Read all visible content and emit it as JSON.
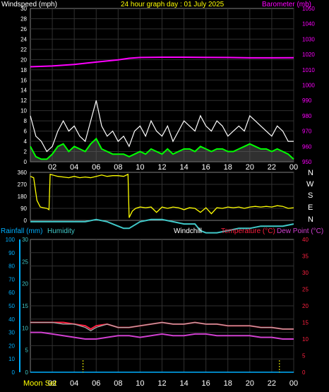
{
  "header": {
    "left_label": "Windspeed (mph)",
    "title": "24 hour graph day : 01 July 2025",
    "right_label": "Barometer (mb)"
  },
  "middle": {
    "right_labels": [
      "N",
      "W",
      "S",
      "E",
      "N"
    ]
  },
  "bottom": {
    "label_rain": "Rainfall (mm)",
    "label_humidity": "Humidity",
    "label_windchill": "Windchill",
    "label_temperature": "Temperature (°C)",
    "label_dew": "Dew Point (°C)",
    "moon_label": "Moon Set"
  },
  "colors": {
    "frame": "#808080",
    "axis": "#ffffff",
    "wind_gust": "#ffffff",
    "wind_avg": "#00ff00",
    "wind_avg_fill": "#d0d0d0",
    "barometer": "#ff00ff",
    "wind_dir": "#ffff00",
    "rain_axis": "#00b0ff",
    "humidity": "#40c8c8",
    "temperature": "#ff2040",
    "dewpoint": "#d040d0",
    "windchill": "#b0b0b0",
    "moon": "#ffff00"
  },
  "chart_data": [
    {
      "type": "line",
      "name": "wind",
      "xticks": [
        "02",
        "04",
        "06",
        "08",
        "10",
        "12",
        "14",
        "16",
        "18",
        "20",
        "22",
        "00"
      ],
      "xlim": [
        0,
        24
      ],
      "ylim_left": [
        0,
        30
      ],
      "yticks_left": [
        0,
        2,
        4,
        6,
        8,
        10,
        12,
        14,
        16,
        18,
        20,
        22,
        24,
        26,
        28,
        30
      ],
      "ylim_right": [
        950,
        1050
      ],
      "yticks_right": [
        950,
        960,
        970,
        980,
        990,
        1000,
        1010,
        1020,
        1030,
        1040,
        1050
      ],
      "series": [
        {
          "name": "gust",
          "x": [
            0,
            0.5,
            1,
            1.5,
            2,
            2.5,
            3,
            3.5,
            4,
            4.5,
            5,
            5.5,
            6,
            6.5,
            7,
            7.5,
            8,
            8.5,
            9,
            9.5,
            10,
            10.5,
            11,
            11.5,
            12,
            12.5,
            13,
            13.5,
            14,
            14.5,
            15,
            15.5,
            16,
            16.5,
            17,
            17.5,
            18,
            18.5,
            19,
            19.5,
            20,
            20.5,
            21,
            21.5,
            22,
            22.5,
            23,
            23.5,
            24
          ],
          "y": [
            9,
            5,
            4,
            2,
            3,
            6,
            8,
            6,
            7,
            5,
            4,
            8,
            12,
            7,
            5,
            6,
            4,
            5,
            3,
            6,
            7,
            5,
            8,
            6,
            5,
            7,
            4,
            6,
            8,
            7,
            6,
            9,
            7,
            6,
            8,
            7,
            5,
            6,
            7,
            6,
            9,
            8,
            7,
            6,
            5,
            7,
            6,
            4,
            4
          ]
        },
        {
          "name": "average",
          "x": [
            0,
            0.5,
            1,
            1.5,
            2,
            2.5,
            3,
            3.5,
            4,
            4.5,
            5,
            5.5,
            6,
            6.5,
            7,
            7.5,
            8,
            8.5,
            9,
            9.5,
            10,
            10.5,
            11,
            11.5,
            12,
            12.5,
            13,
            13.5,
            14,
            14.5,
            15,
            15.5,
            16,
            16.5,
            17,
            17.5,
            18,
            18.5,
            19,
            19.5,
            20,
            20.5,
            21,
            21.5,
            22,
            22.5,
            23,
            23.5,
            24
          ],
          "y": [
            3,
            1,
            0.5,
            0.5,
            1.5,
            3,
            3.5,
            2,
            3,
            2.5,
            2,
            3.5,
            4.5,
            2.5,
            2,
            1.5,
            1.5,
            1.5,
            1,
            1.5,
            2,
            1.5,
            2.5,
            2,
            1.5,
            2.5,
            1.5,
            2,
            2.5,
            2.5,
            2,
            3,
            2.5,
            2,
            2.5,
            2.5,
            2,
            2,
            2.5,
            3,
            3.5,
            3,
            2.5,
            2.5,
            2,
            2.5,
            2,
            1.5,
            0.5
          ]
        },
        {
          "name": "barometer",
          "axis": "right",
          "x": [
            0,
            2,
            4,
            6,
            8,
            9,
            10,
            12,
            14,
            16,
            18,
            20,
            22,
            24
          ],
          "y": [
            1012,
            1012.5,
            1013.5,
            1015,
            1016.5,
            1017.5,
            1018,
            1018.2,
            1018.2,
            1018.1,
            1018,
            1017.8,
            1017.8,
            1017.9
          ]
        }
      ]
    },
    {
      "type": "line",
      "name": "wind_direction",
      "ylim": [
        0,
        360
      ],
      "yticks": [
        0,
        90,
        180,
        270,
        360
      ],
      "series": [
        {
          "name": "direction",
          "x": [
            0,
            0.3,
            0.6,
            0.9,
            1.2,
            1.5,
            1.7,
            1.8,
            2.5,
            3,
            3.5,
            4,
            4.5,
            5,
            5.5,
            6,
            6.5,
            7,
            7.5,
            8,
            8.5,
            8.9,
            9.0,
            9.3,
            9.6,
            10,
            10.5,
            11,
            11.5,
            12,
            12.5,
            13,
            13.5,
            14,
            14.5,
            15,
            15.5,
            16,
            16.5,
            17,
            17.5,
            18,
            18.5,
            19,
            19.5,
            20,
            20.5,
            21,
            21.5,
            22,
            22.5,
            23,
            23.5,
            24
          ],
          "y": [
            330,
            320,
            150,
            100,
            95,
            90,
            80,
            345,
            330,
            325,
            320,
            330,
            320,
            325,
            320,
            330,
            340,
            330,
            335,
            335,
            330,
            345,
            20,
            70,
            90,
            100,
            95,
            100,
            60,
            100,
            90,
            100,
            95,
            80,
            95,
            90,
            60,
            95,
            50,
            95,
            90,
            100,
            95,
            100,
            90,
            100,
            105,
            100,
            105,
            100,
            110,
            105,
            90,
            95
          ]
        }
      ]
    },
    {
      "type": "line",
      "name": "temperature_humidity",
      "ylim_rain": [
        0,
        100
      ],
      "yticks_rain": [
        0,
        10,
        20,
        30,
        40,
        50,
        60,
        70,
        80,
        90,
        100
      ],
      "ylim_humidity": [
        0,
        30
      ],
      "yticks_humidity": [
        0,
        5,
        10,
        15,
        20,
        25,
        30
      ],
      "ylim_temp": [
        0,
        40
      ],
      "yticks_temp": [
        0,
        5,
        10,
        15,
        20,
        25,
        30,
        35,
        40
      ],
      "series": [
        {
          "name": "humidity",
          "x": [
            0,
            1,
            2,
            3,
            4,
            5,
            6,
            7,
            8,
            8.5,
            9,
            10,
            11,
            12,
            13,
            14,
            15,
            15.5,
            16,
            17,
            18,
            19,
            20,
            21,
            22,
            23,
            24
          ],
          "y": [
            34,
            34,
            34,
            34,
            34,
            34,
            34.5,
            34,
            33,
            32.5,
            32.5,
            34,
            34.5,
            34.5,
            34,
            33.5,
            33.5,
            32,
            31.5,
            31.5,
            32,
            32.5,
            32.5,
            33,
            33,
            33,
            33.5
          ]
        },
        {
          "name": "temperature",
          "x": [
            0,
            1,
            2,
            3,
            4,
            5,
            5.5,
            6,
            7,
            8,
            9,
            10,
            11,
            12,
            13,
            14,
            15,
            16,
            17,
            18,
            19,
            20,
            21,
            22,
            23,
            24
          ],
          "y": [
            15,
            15,
            15,
            15,
            14.5,
            14,
            13,
            14,
            14.5,
            13.5,
            13.5,
            14,
            14.5,
            15,
            14.5,
            14.5,
            15,
            14.5,
            14.5,
            14,
            14,
            14,
            13.5,
            13.5,
            13,
            13
          ]
        },
        {
          "name": "windchill",
          "x": [
            0,
            1,
            2,
            3,
            4,
            5,
            5.5,
            6,
            7,
            8,
            9,
            10,
            11,
            12,
            13,
            14,
            15,
            16,
            17,
            18,
            19,
            20,
            21,
            22,
            23,
            24
          ],
          "y": [
            15,
            15,
            15,
            14.5,
            14.5,
            13.5,
            12.5,
            13.5,
            14.5,
            13.5,
            13.5,
            14,
            14.5,
            15,
            14.5,
            14.5,
            15,
            14.5,
            14.5,
            14,
            14,
            14,
            13.5,
            13.5,
            13,
            13
          ]
        },
        {
          "name": "dewpoint",
          "x": [
            0,
            1,
            2,
            3,
            4,
            5,
            6,
            7,
            8,
            9,
            10,
            11,
            12,
            13,
            14,
            15,
            16,
            17,
            18,
            19,
            20,
            21,
            22,
            23,
            24
          ],
          "y": [
            12,
            12,
            11.5,
            11,
            10.5,
            10,
            10,
            10.5,
            11,
            11,
            10.5,
            11,
            11.5,
            11,
            11,
            11.5,
            11.5,
            11,
            11,
            11,
            11,
            10.5,
            10.5,
            10,
            10
          ]
        },
        {
          "name": "rainfall",
          "x": [
            0,
            24
          ],
          "y": [
            0,
            0
          ]
        }
      ],
      "moon_marks_x": [
        4.8,
        22.7
      ]
    }
  ]
}
